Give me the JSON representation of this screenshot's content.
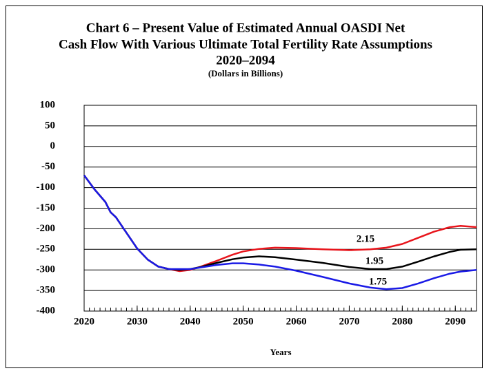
{
  "chart_data": {
    "type": "line",
    "title": [
      "Chart 6 – Present Value of Estimated Annual OASDI Net",
      "Cash Flow With Various Ultimate Total Fertility Rate Assumptions",
      "2020–2094"
    ],
    "subtitle": "(Dollars in Billions)",
    "xlabel": "Years",
    "x": [
      2020,
      2022,
      2024,
      2025,
      2026,
      2028,
      2030,
      2032,
      2034,
      2036,
      2038,
      2040,
      2042,
      2045,
      2048,
      2050,
      2053,
      2056,
      2060,
      2065,
      2070,
      2074,
      2077,
      2080,
      2083,
      2086,
      2089,
      2091,
      2094
    ],
    "series": [
      {
        "name": "2.15",
        "color": "#e8141b",
        "values": [
          -70,
          -105,
          -135,
          -160,
          -172,
          -210,
          -248,
          -275,
          -292,
          -298,
          -303,
          -300,
          -292,
          -278,
          -263,
          -255,
          -249,
          -246,
          -247,
          -250,
          -252,
          -250,
          -246,
          -237,
          -222,
          -207,
          -196,
          -193,
          -196
        ]
      },
      {
        "name": "1.95",
        "color": "#000000",
        "values": [
          -70,
          -105,
          -135,
          -160,
          -172,
          -210,
          -248,
          -275,
          -292,
          -298,
          -300,
          -298,
          -293,
          -283,
          -274,
          -270,
          -267,
          -269,
          -275,
          -283,
          -293,
          -298,
          -298,
          -292,
          -280,
          -267,
          -256,
          -251,
          -250
        ]
      },
      {
        "name": "1.75",
        "color": "#1a1ae6",
        "values": [
          -70,
          -105,
          -135,
          -160,
          -172,
          -210,
          -248,
          -275,
          -292,
          -298,
          -298,
          -298,
          -294,
          -288,
          -284,
          -284,
          -287,
          -292,
          -302,
          -317,
          -333,
          -343,
          -347,
          -344,
          -333,
          -320,
          -309,
          -304,
          -300
        ]
      }
    ],
    "xlim": [
      2020,
      2094
    ],
    "xticks": [
      2020,
      2030,
      2040,
      2050,
      2060,
      2070,
      2080,
      2090
    ],
    "ylim": [
      -400,
      100
    ],
    "yticks": [
      -400,
      -350,
      -300,
      -250,
      -200,
      -150,
      -100,
      -50,
      0,
      50,
      100
    ],
    "grid": true
  }
}
